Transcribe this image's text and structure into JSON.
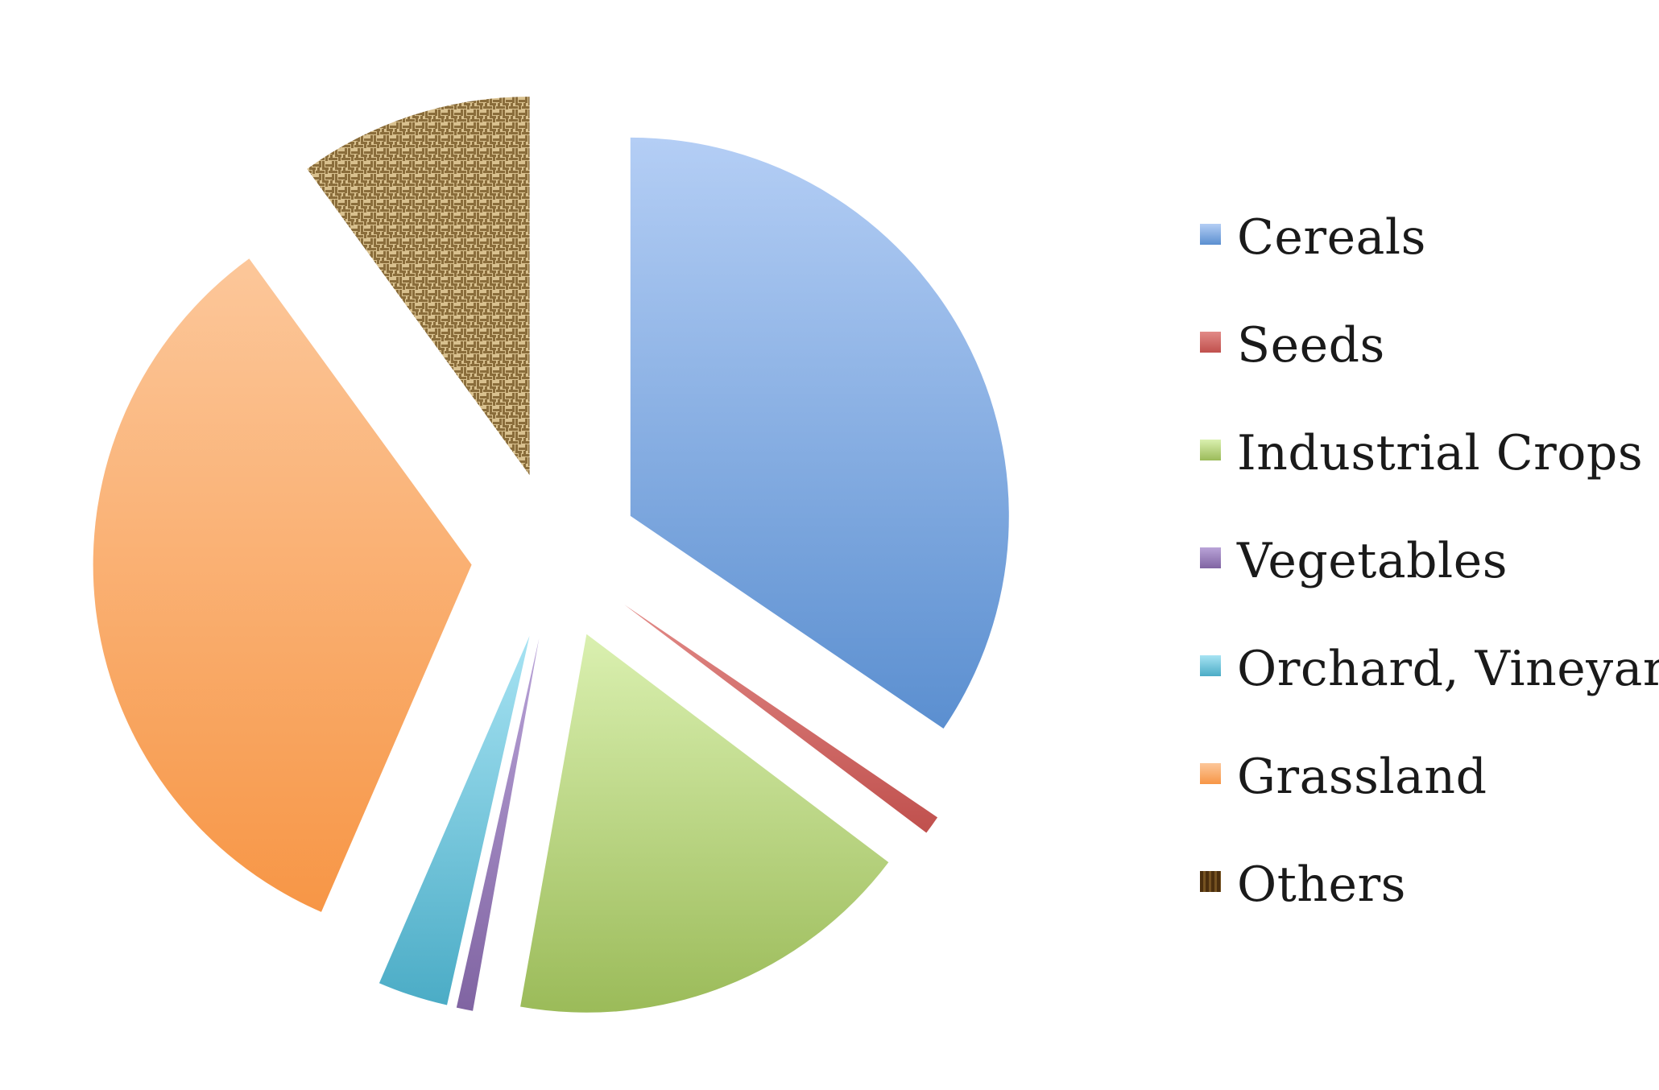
{
  "chart_data": {
    "type": "pie",
    "exploded": true,
    "legend_position": "right",
    "slices": [
      {
        "label": "Cereals",
        "value": 34.5,
        "color": "#5b8fd0",
        "color_light": "#b4cef5"
      },
      {
        "label": "Seeds",
        "value": 0.8,
        "color": "#c0504d",
        "color_light": "#e28a87"
      },
      {
        "label": "Industrial Crops",
        "value": 17.5,
        "color": "#9bbb59",
        "color_light": "#daf0b0"
      },
      {
        "label": "Vegetables",
        "value": 0.7,
        "color": "#8064a2",
        "color_light": "#b9a3d8"
      },
      {
        "label": "Orchard, Vineyard",
        "value": 3.0,
        "color": "#4bacc6",
        "color_light": "#a7e3f3"
      },
      {
        "label": "Grassland",
        "value": 33.5,
        "color": "#f79646",
        "color_light": "#fcc79a"
      },
      {
        "label": "Others",
        "value": 10.0,
        "color": "#8a6d3b",
        "color_light": "#d8c08e",
        "pattern": "woven"
      }
    ]
  }
}
